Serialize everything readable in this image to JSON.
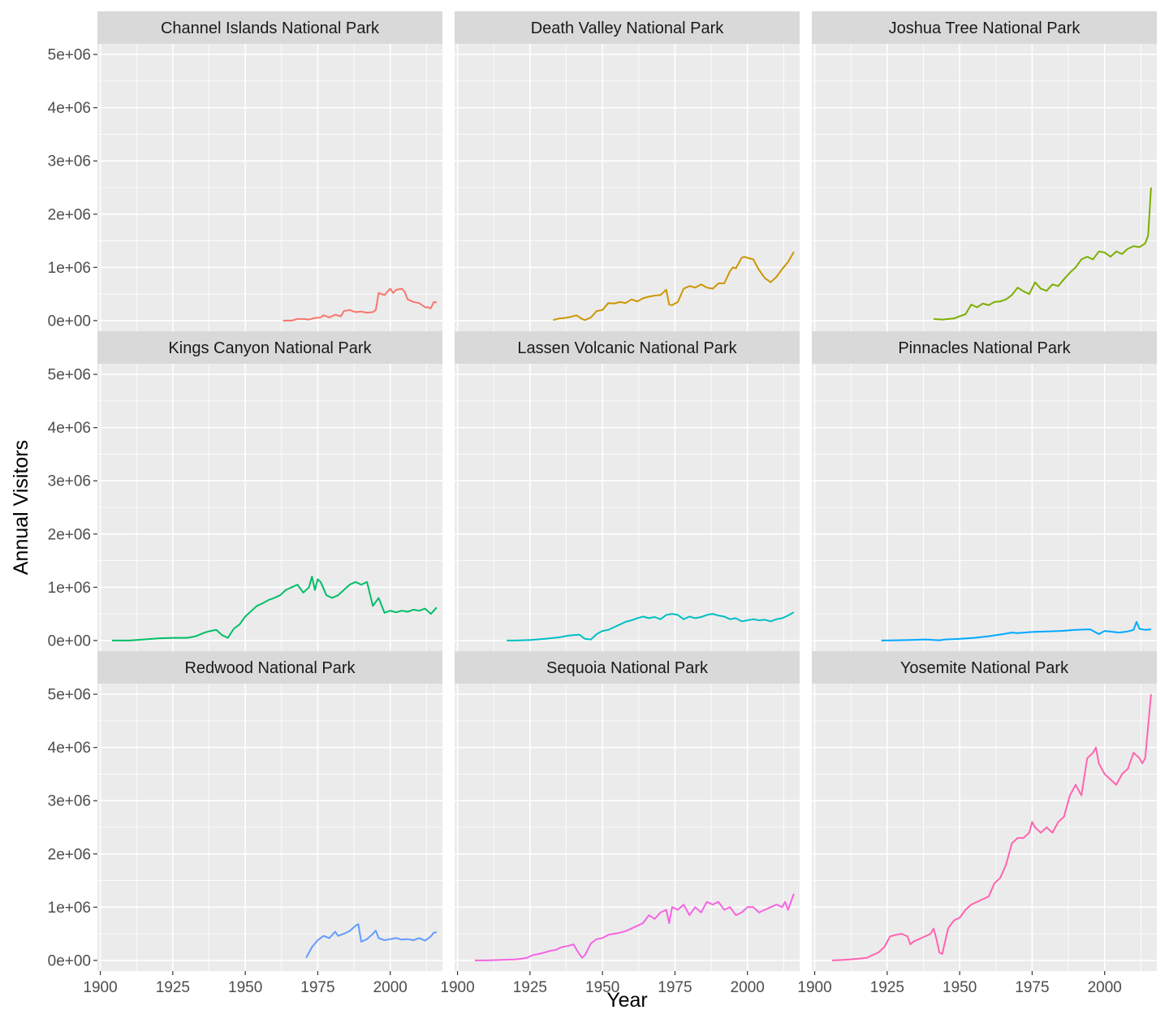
{
  "chart_data": {
    "type": "line",
    "layout": "facet-grid-3x3",
    "xlabel": "Year",
    "ylabel": "Annual Visitors",
    "xlim": [
      1899,
      2018
    ],
    "ylim": [
      -200000,
      5200000
    ],
    "x_ticks": [
      1900,
      1925,
      1950,
      1975,
      2000
    ],
    "x_tick_labels": [
      "1900",
      "1925",
      "1950",
      "1975",
      "2000"
    ],
    "y_ticks": [
      0,
      1000000,
      2000000,
      3000000,
      4000000,
      5000000
    ],
    "y_tick_labels": [
      "0e+00",
      "1e+06",
      "2e+06",
      "3e+06",
      "4e+06",
      "5e+06"
    ],
    "grid": true,
    "legend": "none",
    "panels": [
      {
        "name": "Channel Islands National Park",
        "color": "#F8766D",
        "x": [
          1963,
          1966,
          1968,
          1970,
          1972,
          1974,
          1976,
          1977,
          1979,
          1981,
          1983,
          1984,
          1986,
          1988,
          1990,
          1992,
          1994,
          1995,
          1996,
          1998,
          2000,
          2001,
          2002,
          2004,
          2005,
          2006,
          2008,
          2010,
          2012,
          2013,
          2014,
          2015,
          2016
        ],
        "y": [
          0,
          0,
          30000,
          30000,
          20000,
          50000,
          60000,
          100000,
          60000,
          110000,
          80000,
          180000,
          200000,
          160000,
          170000,
          150000,
          160000,
          200000,
          520000,
          480000,
          600000,
          520000,
          580000,
          600000,
          540000,
          400000,
          350000,
          330000,
          250000,
          250000,
          230000,
          350000,
          340000
        ]
      },
      {
        "name": "Death Valley National Park",
        "color": "#CD9600",
        "x": [
          1933,
          1935,
          1937,
          1939,
          1941,
          1943,
          1944,
          1946,
          1948,
          1950,
          1952,
          1954,
          1956,
          1958,
          1960,
          1962,
          1964,
          1966,
          1968,
          1970,
          1972,
          1973,
          1974,
          1976,
          1978,
          1980,
          1982,
          1984,
          1986,
          1988,
          1990,
          1992,
          1994,
          1995,
          1996,
          1998,
          1999,
          2000,
          2002,
          2004,
          2006,
          2008,
          2010,
          2012,
          2014,
          2016
        ],
        "y": [
          10000,
          40000,
          50000,
          70000,
          100000,
          30000,
          10000,
          60000,
          180000,
          200000,
          330000,
          320000,
          350000,
          330000,
          400000,
          360000,
          420000,
          450000,
          470000,
          480000,
          580000,
          300000,
          290000,
          350000,
          600000,
          650000,
          620000,
          680000,
          620000,
          600000,
          700000,
          700000,
          930000,
          1000000,
          980000,
          1180000,
          1200000,
          1180000,
          1150000,
          950000,
          800000,
          720000,
          820000,
          970000,
          1100000,
          1290000
        ]
      },
      {
        "name": "Joshua Tree National Park",
        "color": "#7CAE00",
        "x": [
          1941,
          1944,
          1946,
          1948,
          1950,
          1952,
          1954,
          1956,
          1958,
          1960,
          1962,
          1964,
          1966,
          1968,
          1970,
          1972,
          1974,
          1976,
          1978,
          1980,
          1982,
          1984,
          1986,
          1988,
          1990,
          1992,
          1994,
          1996,
          1998,
          2000,
          2002,
          2004,
          2006,
          2008,
          2010,
          2012,
          2014,
          2015,
          2016
        ],
        "y": [
          30000,
          20000,
          30000,
          40000,
          80000,
          120000,
          300000,
          250000,
          320000,
          290000,
          350000,
          360000,
          400000,
          480000,
          620000,
          550000,
          500000,
          720000,
          600000,
          560000,
          680000,
          650000,
          780000,
          900000,
          1000000,
          1150000,
          1200000,
          1150000,
          1300000,
          1280000,
          1200000,
          1300000,
          1250000,
          1350000,
          1400000,
          1380000,
          1450000,
          1600000,
          2500000
        ]
      },
      {
        "name": "Kings Canyon National Park",
        "color": "#00BE67",
        "x": [
          1904,
          1910,
          1915,
          1920,
          1925,
          1930,
          1933,
          1936,
          1938,
          1940,
          1942,
          1944,
          1946,
          1948,
          1950,
          1952,
          1954,
          1956,
          1958,
          1960,
          1962,
          1964,
          1966,
          1968,
          1970,
          1972,
          1973,
          1974,
          1975,
          1976,
          1978,
          1980,
          1982,
          1984,
          1986,
          1988,
          1990,
          1992,
          1994,
          1996,
          1998,
          2000,
          2002,
          2004,
          2006,
          2008,
          2010,
          2012,
          2014,
          2016
        ],
        "y": [
          0,
          0,
          20000,
          40000,
          50000,
          50000,
          80000,
          150000,
          180000,
          200000,
          100000,
          50000,
          220000,
          300000,
          450000,
          550000,
          650000,
          700000,
          760000,
          800000,
          850000,
          950000,
          1000000,
          1050000,
          900000,
          1000000,
          1200000,
          950000,
          1150000,
          1100000,
          850000,
          800000,
          850000,
          950000,
          1050000,
          1100000,
          1050000,
          1100000,
          650000,
          800000,
          520000,
          560000,
          530000,
          560000,
          540000,
          580000,
          560000,
          600000,
          500000,
          620000
        ]
      },
      {
        "name": "Lassen Volcanic National Park",
        "color": "#00BFC4",
        "x": [
          1917,
          1920,
          1925,
          1930,
          1935,
          1938,
          1940,
          1942,
          1944,
          1946,
          1948,
          1950,
          1952,
          1954,
          1956,
          1958,
          1960,
          1962,
          1964,
          1966,
          1968,
          1970,
          1972,
          1974,
          1976,
          1978,
          1980,
          1982,
          1984,
          1986,
          1988,
          1990,
          1992,
          1994,
          1996,
          1998,
          2000,
          2002,
          2004,
          2006,
          2008,
          2010,
          2012,
          2014,
          2016
        ],
        "y": [
          0,
          0,
          10000,
          30000,
          60000,
          90000,
          100000,
          110000,
          30000,
          20000,
          120000,
          180000,
          200000,
          250000,
          300000,
          350000,
          380000,
          420000,
          450000,
          420000,
          440000,
          400000,
          480000,
          500000,
          480000,
          400000,
          450000,
          420000,
          440000,
          480000,
          500000,
          470000,
          450000,
          400000,
          420000,
          360000,
          380000,
          400000,
          380000,
          390000,
          360000,
          400000,
          420000,
          470000,
          530000
        ]
      },
      {
        "name": "Pinnacles National Park",
        "color": "#00A9FF",
        "x": [
          1923,
          1928,
          1933,
          1938,
          1941,
          1943,
          1945,
          1950,
          1955,
          1960,
          1965,
          1968,
          1970,
          1975,
          1980,
          1985,
          1990,
          1995,
          1998,
          2000,
          2005,
          2008,
          2010,
          2011,
          2012,
          2014,
          2016
        ],
        "y": [
          0,
          5000,
          10000,
          20000,
          10000,
          5000,
          20000,
          30000,
          50000,
          80000,
          120000,
          150000,
          140000,
          160000,
          170000,
          180000,
          200000,
          210000,
          120000,
          180000,
          150000,
          170000,
          200000,
          350000,
          220000,
          200000,
          210000
        ]
      },
      {
        "name": "Redwood National Park",
        "color": "#619CFF",
        "x": [
          1971,
          1973,
          1975,
          1977,
          1979,
          1980,
          1981,
          1982,
          1984,
          1986,
          1988,
          1989,
          1990,
          1992,
          1994,
          1995,
          1996,
          1998,
          2000,
          2002,
          2004,
          2006,
          2008,
          2010,
          2012,
          2014,
          2015,
          2016
        ],
        "y": [
          50000,
          250000,
          380000,
          460000,
          420000,
          480000,
          540000,
          460000,
          500000,
          550000,
          650000,
          680000,
          350000,
          400000,
          500000,
          560000,
          420000,
          380000,
          400000,
          420000,
          390000,
          400000,
          380000,
          420000,
          370000,
          450000,
          520000,
          530000
        ]
      },
      {
        "name": "Sequoia National Park",
        "color": "#F564E3",
        "x": [
          1906,
          1910,
          1915,
          1920,
          1922,
          1924,
          1926,
          1928,
          1930,
          1932,
          1934,
          1936,
          1938,
          1940,
          1942,
          1943,
          1944,
          1946,
          1948,
          1950,
          1952,
          1954,
          1956,
          1958,
          1960,
          1962,
          1964,
          1966,
          1968,
          1970,
          1972,
          1973,
          1974,
          1976,
          1978,
          1980,
          1982,
          1984,
          1986,
          1988,
          1990,
          1992,
          1994,
          1996,
          1998,
          2000,
          2002,
          2004,
          2006,
          2008,
          2010,
          2012,
          2013,
          2014,
          2016
        ],
        "y": [
          0,
          0,
          10000,
          20000,
          30000,
          50000,
          100000,
          120000,
          150000,
          180000,
          200000,
          250000,
          270000,
          300000,
          120000,
          50000,
          100000,
          320000,
          400000,
          420000,
          480000,
          500000,
          520000,
          550000,
          600000,
          650000,
          700000,
          850000,
          780000,
          900000,
          950000,
          700000,
          1000000,
          950000,
          1050000,
          850000,
          1000000,
          900000,
          1100000,
          1050000,
          1100000,
          950000,
          1000000,
          850000,
          900000,
          1000000,
          1000000,
          900000,
          950000,
          1000000,
          1050000,
          1000000,
          1100000,
          950000,
          1250000
        ]
      },
      {
        "name": "Yosemite National Park",
        "color": "#FF64B0",
        "x": [
          1906,
          1910,
          1915,
          1918,
          1920,
          1922,
          1924,
          1926,
          1928,
          1930,
          1932,
          1933,
          1934,
          1936,
          1938,
          1940,
          1941,
          1942,
          1943,
          1944,
          1946,
          1948,
          1950,
          1952,
          1954,
          1956,
          1958,
          1960,
          1962,
          1964,
          1966,
          1968,
          1970,
          1972,
          1974,
          1975,
          1976,
          1978,
          1980,
          1982,
          1984,
          1986,
          1988,
          1990,
          1992,
          1994,
          1996,
          1997,
          1998,
          2000,
          2002,
          2004,
          2005,
          2006,
          2008,
          2010,
          2012,
          2013,
          2014,
          2016
        ],
        "y": [
          0,
          10000,
          30000,
          50000,
          100000,
          150000,
          250000,
          450000,
          480000,
          500000,
          450000,
          300000,
          350000,
          400000,
          450000,
          500000,
          600000,
          400000,
          150000,
          120000,
          600000,
          750000,
          800000,
          950000,
          1050000,
          1100000,
          1150000,
          1200000,
          1450000,
          1550000,
          1800000,
          2200000,
          2300000,
          2300000,
          2400000,
          2600000,
          2500000,
          2400000,
          2500000,
          2400000,
          2600000,
          2700000,
          3100000,
          3300000,
          3100000,
          3800000,
          3900000,
          4000000,
          3700000,
          3500000,
          3400000,
          3300000,
          3400000,
          3500000,
          3600000,
          3900000,
          3800000,
          3700000,
          3800000,
          5000000
        ]
      }
    ]
  }
}
